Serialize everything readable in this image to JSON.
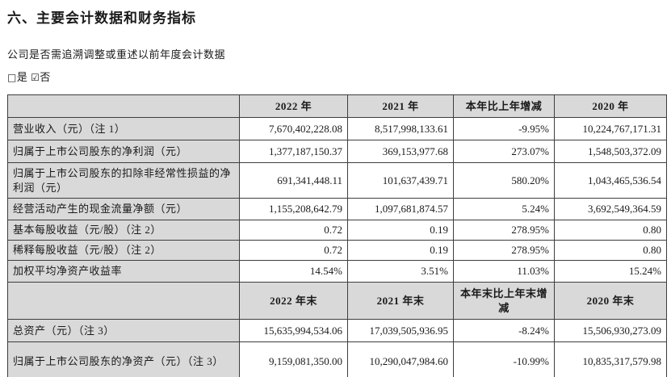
{
  "title": "六、主要会计数据和财务指标",
  "question": "公司是否需追溯调整或重述以前年度会计数据",
  "checkboxes": {
    "yes_box": "□",
    "yes_label": "是",
    "no_box": "☑",
    "no_label": "否"
  },
  "colors": {
    "header_bg": "#d9d9d9",
    "border": "#3d3d3d",
    "page_bg": "#ffffff"
  },
  "table": {
    "header1": {
      "c1": "2022 年",
      "c2": "2021 年",
      "c3": "本年比上年增减",
      "c4": "2020 年"
    },
    "rows1": [
      {
        "label": "营业收入（元）（注 1）",
        "y2022": "7,670,402,228.08",
        "y2021": "8,517,998,133.61",
        "change": "-9.95%",
        "y2020": "10,224,767,171.31"
      },
      {
        "label": "归属于上市公司股东的净利润（元）",
        "y2022": "1,377,187,150.37",
        "y2021": "369,153,977.68",
        "change": "273.07%",
        "y2020": "1,548,503,372.09"
      },
      {
        "label": "归属于上市公司股东的扣除非经常性损益的净利润（元）",
        "y2022": "691,341,448.11",
        "y2021": "101,637,439.71",
        "change": "580.20%",
        "y2020": "1,043,465,536.54"
      },
      {
        "label": "经营活动产生的现金流量净额（元）",
        "y2022": "1,155,208,642.79",
        "y2021": "1,097,681,874.57",
        "change": "5.24%",
        "y2020": "3,692,549,364.59"
      },
      {
        "label": "基本每股收益（元/股）（注 2）",
        "y2022": "0.72",
        "y2021": "0.19",
        "change": "278.95%",
        "y2020": "0.80"
      },
      {
        "label": "稀释每股收益（元/股）（注 2）",
        "y2022": "0.72",
        "y2021": "0.19",
        "change": "278.95%",
        "y2020": "0.80"
      },
      {
        "label": "加权平均净资产收益率",
        "y2022": "14.54%",
        "y2021": "3.51%",
        "change": "11.03%",
        "y2020": "15.24%"
      }
    ],
    "header2": {
      "c1": "2022 年末",
      "c2": "2021 年末",
      "c3": "本年末比上年末增减",
      "c4": "2020 年末"
    },
    "rows2": [
      {
        "label": "总资产（元）（注 3）",
        "y2022": "15,635,994,534.06",
        "y2021": "17,039,505,936.95",
        "change": "-8.24%",
        "y2020": "15,506,930,273.09"
      },
      {
        "label": "归属于上市公司股东的净资产（元）（注 3）",
        "y2022": "9,159,081,350.00",
        "y2021": "10,290,047,984.60",
        "change": "-10.99%",
        "y2020": "10,835,317,579.98"
      }
    ]
  }
}
